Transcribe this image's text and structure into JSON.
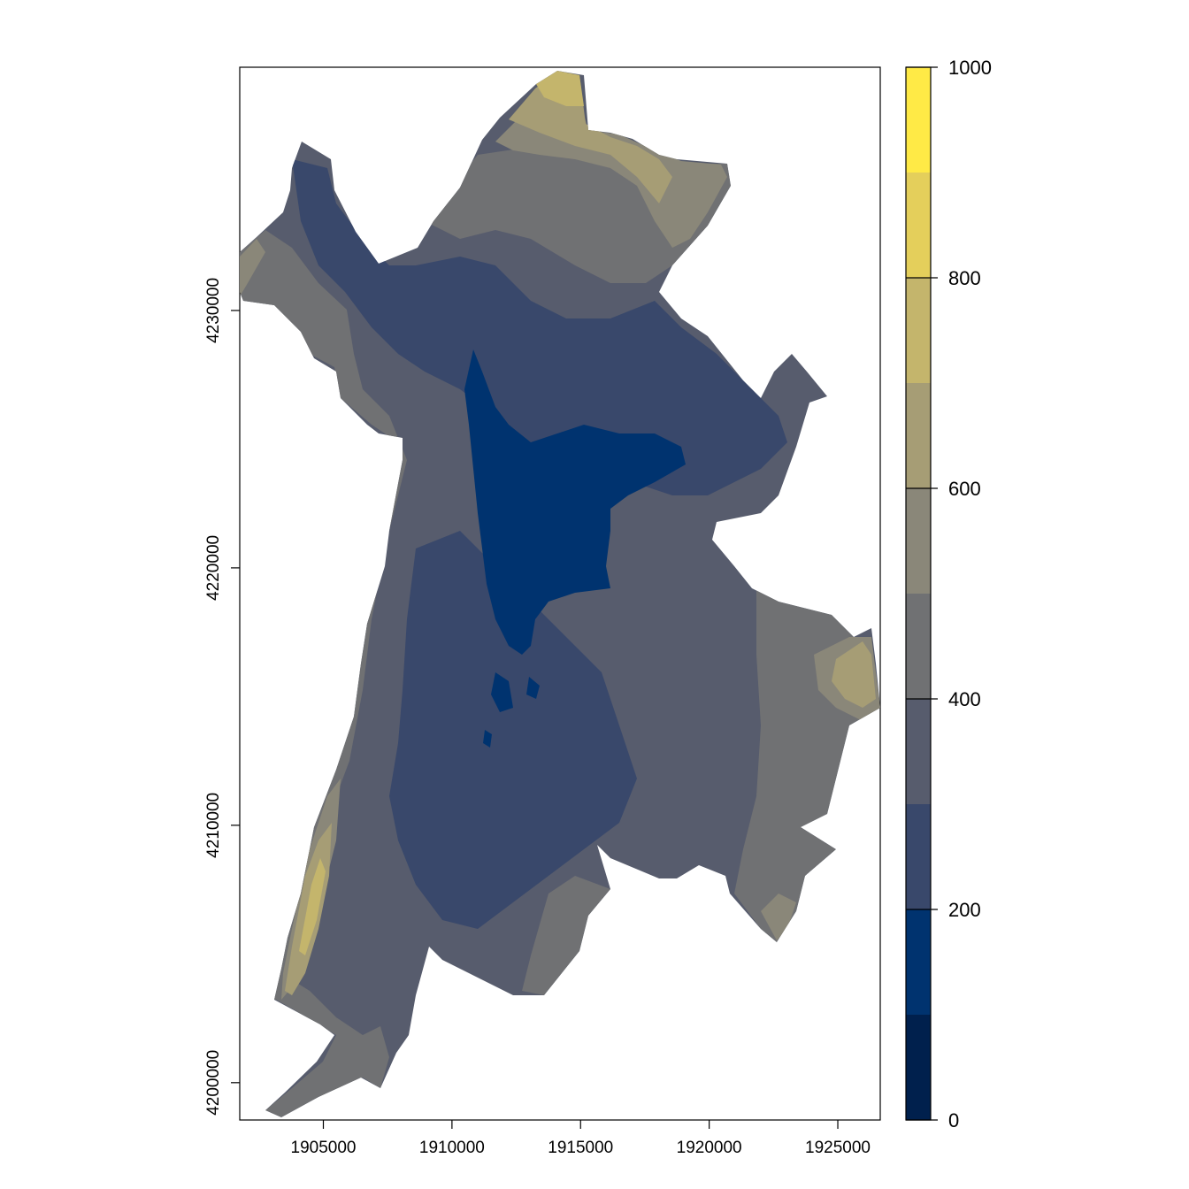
{
  "chart_data": {
    "type": "raster-map",
    "title": "",
    "xlabel": "",
    "ylabel": "",
    "xlim": [
      1901750,
      1926650
    ],
    "ylim": [
      4198550,
      4239450
    ],
    "x_ticks": [
      1905000,
      1910000,
      1915000,
      1920000,
      1925000
    ],
    "x_tick_labels": [
      "1905000",
      "1910000",
      "1915000",
      "1920000",
      "1925000"
    ],
    "y_ticks": [
      4200000,
      4210000,
      4220000,
      4230000
    ],
    "y_tick_labels": [
      "4200000",
      "4210000",
      "4220000",
      "4230000"
    ],
    "legend": {
      "placement": "right",
      "min": 0,
      "max": 1000,
      "breaks": [
        0,
        100,
        200,
        300,
        400,
        500,
        600,
        700,
        800,
        900,
        1000
      ],
      "colors": [
        "#00204d",
        "#00336f",
        "#39486b",
        "#575c6d",
        "#707173",
        "#8a8779",
        "#a69d75",
        "#c4b56c",
        "#e4cf5b",
        "#ffea46"
      ],
      "tick_values": [
        0,
        200,
        400,
        600,
        800,
        1000
      ],
      "tick_labels": [
        "0",
        "200",
        "400",
        "600",
        "800",
        "1000"
      ]
    }
  },
  "map": {
    "region_outline_color": "#575c6d",
    "band_colors": {
      "low": "#00336f",
      "mid_low": "#39486b",
      "mid": "#575c6d",
      "mid_high": "#707173",
      "high": "#8a8779",
      "higher": "#a69d75",
      "top": "#c4b56c"
    }
  }
}
